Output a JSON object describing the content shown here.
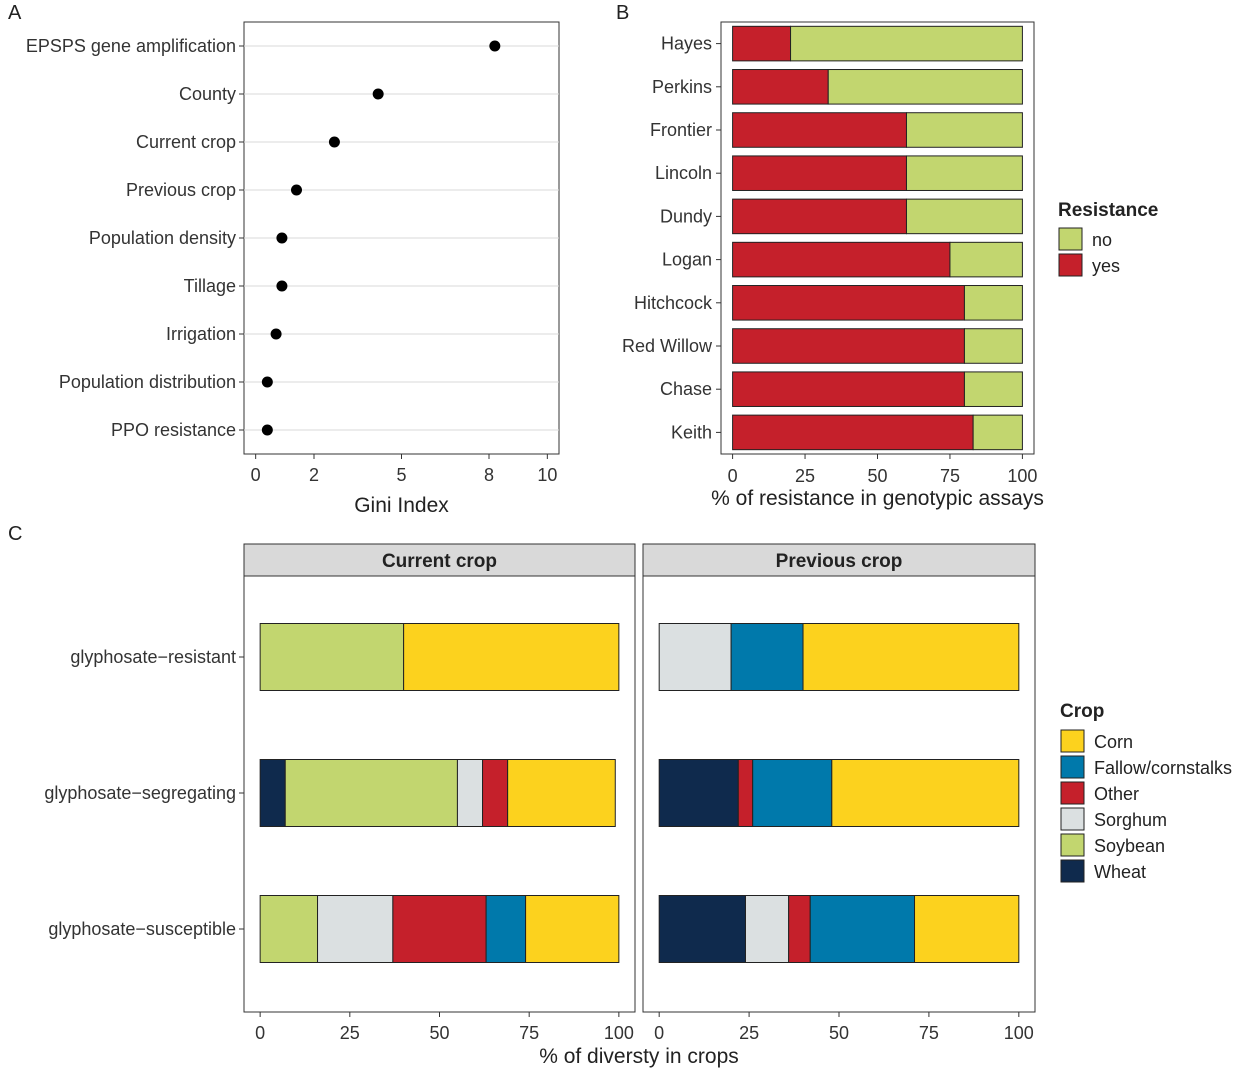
{
  "panel_labels": [
    "A",
    "B",
    "C"
  ],
  "chart_data": [
    {
      "panel": "A",
      "type": "scatter",
      "xlabel": "Gini Index",
      "ylabel": "",
      "xlim": [
        -0.4,
        10.4
      ],
      "xticks": [
        0,
        2,
        5,
        8,
        10
      ],
      "grid": "horizontal",
      "categories": [
        "EPSPS gene amplification",
        "County",
        "Current crop",
        "Previous crop",
        "Population density",
        "Tillage",
        "Irrigation",
        "Population distribution",
        "PPO resistance"
      ],
      "values": [
        8.2,
        4.2,
        2.7,
        1.4,
        0.9,
        0.9,
        0.7,
        0.4,
        0.4
      ]
    },
    {
      "panel": "B",
      "type": "bar",
      "orientation": "horizontal",
      "stacked": true,
      "xlabel": "% of resistance in genotypic assays",
      "xlim": [
        -4,
        104
      ],
      "xticks": [
        0,
        25,
        50,
        75,
        100
      ],
      "categories": [
        "Hayes",
        "Perkins",
        "Frontier",
        "Lincoln",
        "Dundy",
        "Logan",
        "Hitchcock",
        "Red Willow",
        "Chase",
        "Keith"
      ],
      "series": [
        {
          "name": "yes",
          "color": "#c5202b",
          "values": [
            20,
            33,
            60,
            60,
            60,
            75,
            80,
            80,
            80,
            83
          ]
        },
        {
          "name": "no",
          "color": "#c2d66f",
          "values": [
            80,
            67,
            40,
            40,
            40,
            25,
            20,
            20,
            20,
            17
          ]
        }
      ],
      "legend": {
        "title": "Resistance",
        "position": "right",
        "entries": [
          "no",
          "yes"
        ]
      }
    },
    {
      "panel": "C",
      "type": "bar",
      "orientation": "horizontal",
      "stacked": true,
      "xlabel": "% of diversty in crops",
      "xlim": [
        -4.5,
        104.5
      ],
      "xticks": [
        0,
        25,
        50,
        75,
        100
      ],
      "categories": [
        "glyphosate−resistant",
        "glyphosate−segregating",
        "glyphosate−susceptible"
      ],
      "segment_order": [
        "Wheat",
        "Soybean",
        "Sorghum",
        "Other",
        "Fallow/cornstalks",
        "Corn"
      ],
      "colors": {
        "Corn": "#fcd21e",
        "Fallow/cornstalks": "#0079ab",
        "Other": "#c5202b",
        "Sorghum": "#dbe0e1",
        "Soybean": "#c2d66f",
        "Wheat": "#0f2a4d"
      },
      "facets": [
        {
          "title": "Current crop",
          "series": [
            {
              "name": "Wheat",
              "values": [
                0,
                7,
                0
              ]
            },
            {
              "name": "Soybean",
              "values": [
                40,
                48,
                16
              ]
            },
            {
              "name": "Sorghum",
              "values": [
                0,
                7,
                21
              ]
            },
            {
              "name": "Other",
              "values": [
                0,
                7,
                26
              ]
            },
            {
              "name": "Fallow/cornstalks",
              "values": [
                0,
                0,
                11
              ]
            },
            {
              "name": "Corn",
              "values": [
                60,
                30,
                26
              ]
            }
          ]
        },
        {
          "title": "Previous crop",
          "series": [
            {
              "name": "Wheat",
              "values": [
                0,
                22,
                24
              ]
            },
            {
              "name": "Soybean",
              "values": [
                0,
                0,
                0
              ]
            },
            {
              "name": "Sorghum",
              "values": [
                20,
                0,
                12
              ]
            },
            {
              "name": "Other",
              "values": [
                0,
                4,
                6
              ]
            },
            {
              "name": "Fallow/cornstalks",
              "values": [
                20,
                22,
                29
              ]
            },
            {
              "name": "Corn",
              "values": [
                60,
                52,
                29
              ]
            }
          ]
        }
      ],
      "legend": {
        "title": "Crop",
        "position": "right",
        "entries": [
          "Corn",
          "Fallow/cornstalks",
          "Other",
          "Sorghum",
          "Soybean",
          "Wheat"
        ]
      }
    }
  ]
}
